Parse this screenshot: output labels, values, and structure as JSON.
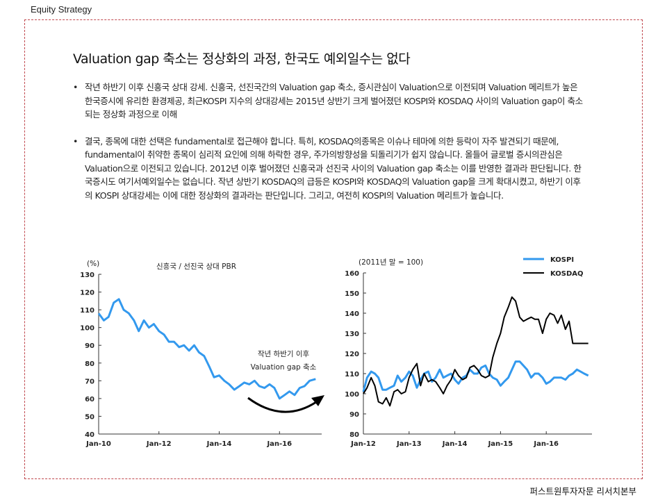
{
  "header": {
    "label": "Equity Strategy"
  },
  "title": "Valuation gap 축소는 정상화의 과정, 한국도 예외일수는 없다",
  "bullets": [
    {
      "marker": "•",
      "text": "작년 하반기 이후 신흥국 상대 강세. 신흥국, 선진국간의 Valuation gap 축소, 증시관심이 Valuation으로 이전되며 Valuation 메리트가 높은 한국증시에 유리한 환경제공, 최근KOSPI 지수의 상대강세는 2015년 상반기 크게 벌어졌던 KOSPI와 KOSDAQ 사이의 Valuation gap이 축소되는 정상화 과정으로 이해"
    },
    {
      "marker": "•",
      "text": "결국, 종목에 대한 선택은 fundamental로 접근해야 합니다. 특히, KOSDAQ의종목은 이슈나 테마에 의한 등락이 자주 발견되기 때문에, fundamental이 취약한 종목이 심리적 요인에 의해 하락한 경우, 주가의방향성을 되돌리기가 쉽지 않습니다. 올들어 글로벌 증시의관심은 Valuation으로 이전되고 있습니다. 2012년 이후 벌어졌던 신흥국과 선진국 사이의 Valuation gap 축소는 이를 반영한 결과라 판단됩니다. 한국증시도 여기서예외일수는 없습니다. 작년 상반기 KOSDAQ의 급등은 KOSPI와 KOSDAQ의 Valuation gap을 크게 확대시켰고, 하반기 이후의 KOSPI 상대강세는 이에 대한 정상화의 결과라는 판단입니다. 그리고, 여전히 KOSPI의 Valuation 메리트가 높습니다."
    }
  ],
  "footer": {
    "label": "퍼스트원투자자문 리서치본부"
  },
  "chart_data": [
    {
      "type": "line",
      "title": "신흥국 / 선진국 상대 PBR",
      "ylabel": "(%)",
      "ylim": [
        40,
        130
      ],
      "yticks": [
        "130",
        "120",
        "110",
        "100",
        "90",
        "80",
        "70",
        "60",
        "50",
        "40"
      ],
      "xticks": [
        "Jan-10",
        "Jan-12",
        "Jan-14",
        "Jan-16"
      ],
      "xlim": [
        2010,
        2017.4
      ],
      "grid": false,
      "color": "#3399ee",
      "annotation": {
        "line1": "작년 하반기 이후",
        "line2": "Valuation gap 축소"
      },
      "x": [
        2010.0,
        2010.17,
        2010.33,
        2010.5,
        2010.67,
        2010.83,
        2011.0,
        2011.17,
        2011.33,
        2011.5,
        2011.67,
        2011.83,
        2012.0,
        2012.17,
        2012.33,
        2012.5,
        2012.67,
        2012.83,
        2013.0,
        2013.17,
        2013.33,
        2013.5,
        2013.67,
        2013.83,
        2014.0,
        2014.17,
        2014.33,
        2014.5,
        2014.67,
        2014.83,
        2015.0,
        2015.17,
        2015.33,
        2015.5,
        2015.67,
        2015.83,
        2016.0,
        2016.17,
        2016.33,
        2016.5,
        2016.67,
        2016.83,
        2017.0,
        2017.2
      ],
      "values": [
        108,
        104,
        106,
        114,
        116,
        110,
        108,
        104,
        98,
        104,
        100,
        102,
        98,
        96,
        92,
        92,
        89,
        90,
        87,
        90,
        86,
        84,
        78,
        72,
        73,
        70,
        68,
        65,
        67,
        69,
        68,
        70,
        67,
        66,
        68,
        66,
        60,
        62,
        64,
        62,
        66,
        67,
        70,
        71
      ]
    },
    {
      "type": "line",
      "title": "",
      "ylabel": "(2011년 말 = 100)",
      "ylim": [
        80,
        160
      ],
      "yticks": [
        "160",
        "150",
        "140",
        "130",
        "120",
        "110",
        "100",
        "90",
        "80"
      ],
      "xticks": [
        "Jan-12",
        "Jan-13",
        "Jan-14",
        "Jan-15",
        "Jan-16"
      ],
      "xlim": [
        2012,
        2017.0
      ],
      "grid": false,
      "legend_position": "top-right",
      "series": [
        {
          "name": "KOSPI",
          "color": "#3399ee",
          "x": [
            2012.0,
            2012.08,
            2012.17,
            2012.25,
            2012.33,
            2012.42,
            2012.5,
            2012.58,
            2012.67,
            2012.75,
            2012.83,
            2012.92,
            2013.0,
            2013.08,
            2013.17,
            2013.25,
            2013.33,
            2013.42,
            2013.5,
            2013.58,
            2013.67,
            2013.75,
            2013.83,
            2013.92,
            2014.0,
            2014.08,
            2014.17,
            2014.25,
            2014.33,
            2014.42,
            2014.5,
            2014.58,
            2014.67,
            2014.75,
            2014.83,
            2014.92,
            2015.0,
            2015.08,
            2015.17,
            2015.25,
            2015.33,
            2015.42,
            2015.5,
            2015.58,
            2015.67,
            2015.75,
            2015.83,
            2015.92,
            2016.0,
            2016.08,
            2016.17,
            2016.25,
            2016.33,
            2016.42,
            2016.5,
            2016.58,
            2016.67,
            2016.75,
            2016.83,
            2016.92
          ],
          "values": [
            101,
            108,
            111,
            110,
            108,
            102,
            102,
            103,
            104,
            109,
            106,
            108,
            111,
            109,
            103,
            107,
            110,
            111,
            106,
            108,
            112,
            108,
            109,
            110,
            107,
            105,
            108,
            109,
            112,
            110,
            110,
            113,
            114,
            110,
            108,
            107,
            104,
            106,
            108,
            112,
            116,
            116,
            114,
            112,
            108,
            110,
            110,
            108,
            105,
            106,
            108,
            108,
            108,
            107,
            109,
            110,
            112,
            111,
            110,
            109
          ]
        },
        {
          "name": "KOSDAQ",
          "color": "#000000",
          "x": [
            2012.0,
            2012.08,
            2012.17,
            2012.25,
            2012.33,
            2012.42,
            2012.5,
            2012.58,
            2012.67,
            2012.75,
            2012.83,
            2012.92,
            2013.0,
            2013.08,
            2013.17,
            2013.25,
            2013.33,
            2013.42,
            2013.5,
            2013.58,
            2013.67,
            2013.75,
            2013.83,
            2013.92,
            2014.0,
            2014.08,
            2014.17,
            2014.25,
            2014.33,
            2014.42,
            2014.5,
            2014.58,
            2014.67,
            2014.75,
            2014.83,
            2014.92,
            2015.0,
            2015.08,
            2015.17,
            2015.25,
            2015.33,
            2015.42,
            2015.5,
            2015.58,
            2015.67,
            2015.75,
            2015.83,
            2015.92,
            2016.0,
            2016.08,
            2016.17,
            2016.25,
            2016.33,
            2016.42,
            2016.5,
            2016.58,
            2016.67,
            2016.75,
            2016.83,
            2016.92
          ],
          "values": [
            100,
            103,
            108,
            104,
            96,
            95,
            98,
            94,
            101,
            102,
            100,
            101,
            108,
            112,
            115,
            104,
            110,
            106,
            107,
            106,
            103,
            100,
            104,
            107,
            112,
            109,
            107,
            108,
            113,
            114,
            112,
            109,
            108,
            109,
            118,
            125,
            130,
            138,
            143,
            148,
            146,
            138,
            136,
            137,
            138,
            137,
            137,
            130,
            137,
            140,
            139,
            135,
            139,
            132,
            136,
            125,
            125,
            125,
            125,
            125
          ]
        }
      ]
    }
  ]
}
